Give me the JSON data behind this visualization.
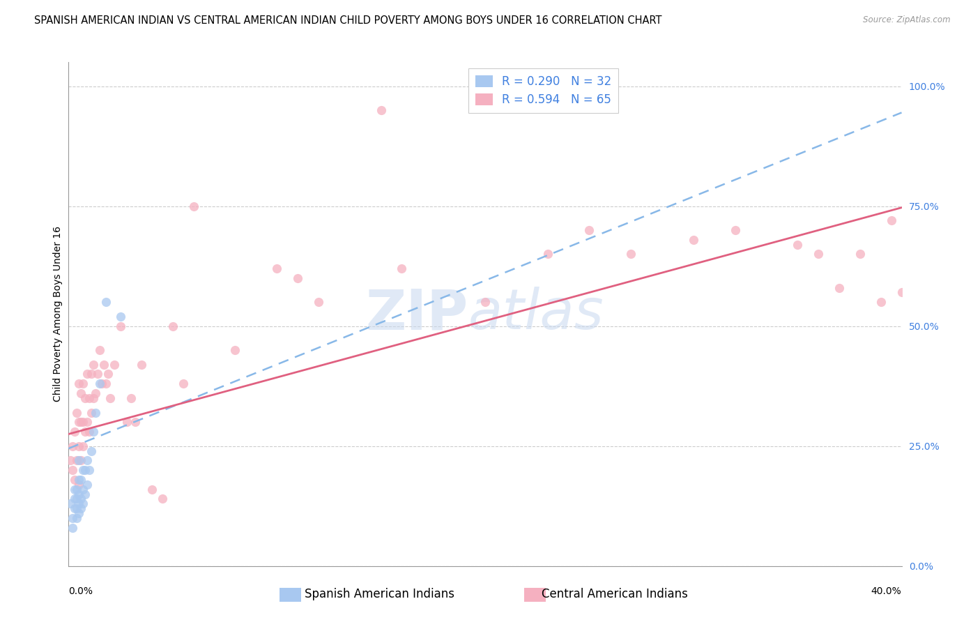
{
  "title": "SPANISH AMERICAN INDIAN VS CENTRAL AMERICAN INDIAN CHILD POVERTY AMONG BOYS UNDER 16 CORRELATION CHART",
  "source": "Source: ZipAtlas.com",
  "xlabel_bottom_left": "0.0%",
  "xlabel_bottom_right": "40.0%",
  "ylabel": "Child Poverty Among Boys Under 16",
  "ytick_labels": [
    "100.0%",
    "75.0%",
    "50.0%",
    "25.0%",
    "0.0%"
  ],
  "ytick_values": [
    1.0,
    0.75,
    0.5,
    0.25,
    0.0
  ],
  "xlim": [
    0,
    0.4
  ],
  "ylim": [
    0,
    1.05
  ],
  "blue_R": 0.29,
  "blue_N": 32,
  "pink_R": 0.594,
  "pink_N": 65,
  "legend_label_blue": "Spanish American Indians",
  "legend_label_pink": "Central American Indians",
  "watermark_zip": "ZIP",
  "watermark_atlas": "atlas",
  "blue_color": "#a8c8f0",
  "pink_color": "#f5b0c0",
  "blue_line_color": "#5080d0",
  "blue_line_dash_color": "#88b8e8",
  "pink_line_color": "#e06080",
  "scatter_alpha": 0.75,
  "scatter_size": 90,
  "blue_x": [
    0.001,
    0.002,
    0.002,
    0.003,
    0.003,
    0.003,
    0.004,
    0.004,
    0.004,
    0.004,
    0.005,
    0.005,
    0.005,
    0.005,
    0.005,
    0.006,
    0.006,
    0.006,
    0.007,
    0.007,
    0.007,
    0.008,
    0.008,
    0.009,
    0.009,
    0.01,
    0.011,
    0.012,
    0.013,
    0.015,
    0.018,
    0.025
  ],
  "blue_y": [
    0.13,
    0.08,
    0.1,
    0.12,
    0.14,
    0.16,
    0.1,
    0.12,
    0.14,
    0.16,
    0.11,
    0.13,
    0.15,
    0.18,
    0.22,
    0.12,
    0.14,
    0.18,
    0.13,
    0.16,
    0.2,
    0.15,
    0.2,
    0.17,
    0.22,
    0.2,
    0.24,
    0.28,
    0.32,
    0.38,
    0.55,
    0.52
  ],
  "pink_x": [
    0.001,
    0.002,
    0.002,
    0.003,
    0.003,
    0.004,
    0.004,
    0.005,
    0.005,
    0.005,
    0.005,
    0.006,
    0.006,
    0.006,
    0.007,
    0.007,
    0.007,
    0.008,
    0.008,
    0.009,
    0.009,
    0.01,
    0.01,
    0.011,
    0.011,
    0.012,
    0.012,
    0.013,
    0.014,
    0.015,
    0.016,
    0.017,
    0.018,
    0.019,
    0.02,
    0.022,
    0.025,
    0.028,
    0.03,
    0.032,
    0.035,
    0.04,
    0.045,
    0.05,
    0.055,
    0.06,
    0.08,
    0.1,
    0.11,
    0.12,
    0.15,
    0.16,
    0.2,
    0.23,
    0.25,
    0.27,
    0.3,
    0.32,
    0.35,
    0.36,
    0.37,
    0.38,
    0.39,
    0.395,
    0.4
  ],
  "pink_y": [
    0.22,
    0.2,
    0.25,
    0.18,
    0.28,
    0.22,
    0.32,
    0.17,
    0.25,
    0.3,
    0.38,
    0.22,
    0.3,
    0.36,
    0.25,
    0.3,
    0.38,
    0.28,
    0.35,
    0.3,
    0.4,
    0.28,
    0.35,
    0.32,
    0.4,
    0.35,
    0.42,
    0.36,
    0.4,
    0.45,
    0.38,
    0.42,
    0.38,
    0.4,
    0.35,
    0.42,
    0.5,
    0.3,
    0.35,
    0.3,
    0.42,
    0.16,
    0.14,
    0.5,
    0.38,
    0.75,
    0.45,
    0.62,
    0.6,
    0.55,
    0.95,
    0.62,
    0.55,
    0.65,
    0.7,
    0.65,
    0.68,
    0.7,
    0.67,
    0.65,
    0.58,
    0.65,
    0.55,
    0.72,
    0.57
  ],
  "background_color": "#ffffff",
  "grid_color": "#cccccc",
  "title_fontsize": 10.5,
  "axis_label_fontsize": 10,
  "tick_fontsize": 10,
  "legend_fontsize": 12,
  "right_ytick_color": "#4080e0",
  "blue_line_intercept": 0.245,
  "blue_line_slope": 1.75,
  "pink_line_intercept": 0.275,
  "pink_line_slope": 1.18
}
